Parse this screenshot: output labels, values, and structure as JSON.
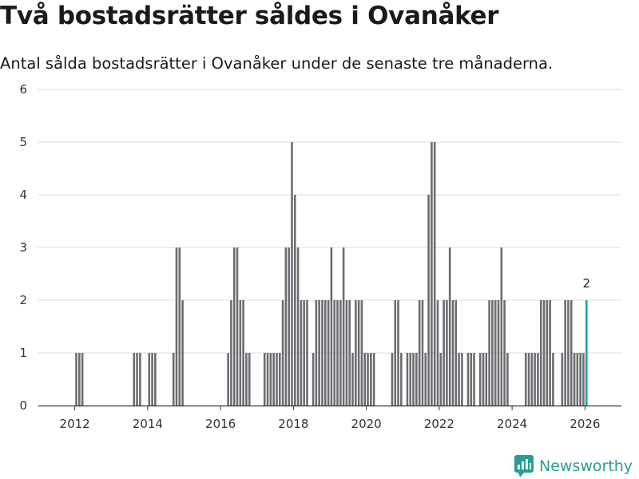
{
  "header": {
    "title": "Två bostadsrätter såldes i Ovanåker",
    "subtitle": "Antal sålda bostadsrätter i Ovanåker under de senaste tre månaderna."
  },
  "brand": {
    "name": "Newsworthy",
    "color": "#2a9d92"
  },
  "colors": {
    "bar": "#6d6d72",
    "highlight": "#1aa39a",
    "grid": "#dddddd",
    "axis": "#333333"
  },
  "chart_data": {
    "type": "bar",
    "title": "Två bostadsrätter såldes i Ovanåker",
    "subtitle": "Antal sålda bostadsrätter i Ovanåker under de senaste tre månaderna.",
    "xlabel": "",
    "ylabel": "",
    "ylim": [
      0,
      6
    ],
    "yticks": [
      "0",
      "1",
      "2",
      "3",
      "4",
      "5",
      "6"
    ],
    "xticks": [
      "2012",
      "2014",
      "2016",
      "2018",
      "2020",
      "2022",
      "2024",
      "2026"
    ],
    "x_start": "2011-01",
    "x_end": "2026-12",
    "grid": true,
    "series": [
      {
        "name": "Antal sålda bostadsrätter",
        "points": [
          {
            "month": "2012-01",
            "value": 1
          },
          {
            "month": "2012-02",
            "value": 1
          },
          {
            "month": "2012-03",
            "value": 1
          },
          {
            "month": "2013-08",
            "value": 1
          },
          {
            "month": "2013-09",
            "value": 1
          },
          {
            "month": "2013-10",
            "value": 1
          },
          {
            "month": "2014-01",
            "value": 1
          },
          {
            "month": "2014-02",
            "value": 1
          },
          {
            "month": "2014-03",
            "value": 1
          },
          {
            "month": "2014-09",
            "value": 1
          },
          {
            "month": "2014-10",
            "value": 3
          },
          {
            "month": "2014-11",
            "value": 3
          },
          {
            "month": "2014-12",
            "value": 2
          },
          {
            "month": "2016-03",
            "value": 1
          },
          {
            "month": "2016-04",
            "value": 2
          },
          {
            "month": "2016-05",
            "value": 3
          },
          {
            "month": "2016-06",
            "value": 3
          },
          {
            "month": "2016-07",
            "value": 2
          },
          {
            "month": "2016-08",
            "value": 2
          },
          {
            "month": "2016-09",
            "value": 1
          },
          {
            "month": "2016-10",
            "value": 1
          },
          {
            "month": "2017-03",
            "value": 1
          },
          {
            "month": "2017-04",
            "value": 1
          },
          {
            "month": "2017-05",
            "value": 1
          },
          {
            "month": "2017-06",
            "value": 1
          },
          {
            "month": "2017-07",
            "value": 1
          },
          {
            "month": "2017-08",
            "value": 1
          },
          {
            "month": "2017-09",
            "value": 2
          },
          {
            "month": "2017-10",
            "value": 3
          },
          {
            "month": "2017-11",
            "value": 3
          },
          {
            "month": "2017-12",
            "value": 5
          },
          {
            "month": "2018-01",
            "value": 4
          },
          {
            "month": "2018-02",
            "value": 3
          },
          {
            "month": "2018-03",
            "value": 2
          },
          {
            "month": "2018-04",
            "value": 2
          },
          {
            "month": "2018-05",
            "value": 2
          },
          {
            "month": "2018-07",
            "value": 1
          },
          {
            "month": "2018-08",
            "value": 2
          },
          {
            "month": "2018-09",
            "value": 2
          },
          {
            "month": "2018-10",
            "value": 2
          },
          {
            "month": "2018-11",
            "value": 2
          },
          {
            "month": "2018-12",
            "value": 2
          },
          {
            "month": "2019-01",
            "value": 3
          },
          {
            "month": "2019-02",
            "value": 2
          },
          {
            "month": "2019-03",
            "value": 2
          },
          {
            "month": "2019-04",
            "value": 2
          },
          {
            "month": "2019-05",
            "value": 3
          },
          {
            "month": "2019-06",
            "value": 2
          },
          {
            "month": "2019-07",
            "value": 2
          },
          {
            "month": "2019-08",
            "value": 1
          },
          {
            "month": "2019-09",
            "value": 2
          },
          {
            "month": "2019-10",
            "value": 2
          },
          {
            "month": "2019-11",
            "value": 2
          },
          {
            "month": "2019-12",
            "value": 1
          },
          {
            "month": "2020-01",
            "value": 1
          },
          {
            "month": "2020-02",
            "value": 1
          },
          {
            "month": "2020-03",
            "value": 1
          },
          {
            "month": "2020-09",
            "value": 1
          },
          {
            "month": "2020-10",
            "value": 2
          },
          {
            "month": "2020-11",
            "value": 2
          },
          {
            "month": "2020-12",
            "value": 1
          },
          {
            "month": "2021-02",
            "value": 1
          },
          {
            "month": "2021-03",
            "value": 1
          },
          {
            "month": "2021-04",
            "value": 1
          },
          {
            "month": "2021-05",
            "value": 1
          },
          {
            "month": "2021-06",
            "value": 2
          },
          {
            "month": "2021-07",
            "value": 2
          },
          {
            "month": "2021-08",
            "value": 1
          },
          {
            "month": "2021-09",
            "value": 4
          },
          {
            "month": "2021-10",
            "value": 5
          },
          {
            "month": "2021-11",
            "value": 5
          },
          {
            "month": "2021-12",
            "value": 2
          },
          {
            "month": "2022-01",
            "value": 1
          },
          {
            "month": "2022-02",
            "value": 2
          },
          {
            "month": "2022-03",
            "value": 2
          },
          {
            "month": "2022-04",
            "value": 3
          },
          {
            "month": "2022-05",
            "value": 2
          },
          {
            "month": "2022-06",
            "value": 2
          },
          {
            "month": "2022-07",
            "value": 1
          },
          {
            "month": "2022-08",
            "value": 1
          },
          {
            "month": "2022-10",
            "value": 1
          },
          {
            "month": "2022-11",
            "value": 1
          },
          {
            "month": "2022-12",
            "value": 1
          },
          {
            "month": "2023-02",
            "value": 1
          },
          {
            "month": "2023-03",
            "value": 1
          },
          {
            "month": "2023-04",
            "value": 1
          },
          {
            "month": "2023-05",
            "value": 2
          },
          {
            "month": "2023-06",
            "value": 2
          },
          {
            "month": "2023-07",
            "value": 2
          },
          {
            "month": "2023-08",
            "value": 2
          },
          {
            "month": "2023-09",
            "value": 3
          },
          {
            "month": "2023-10",
            "value": 2
          },
          {
            "month": "2023-11",
            "value": 1
          },
          {
            "month": "2024-05",
            "value": 1
          },
          {
            "month": "2024-06",
            "value": 1
          },
          {
            "month": "2024-07",
            "value": 1
          },
          {
            "month": "2024-08",
            "value": 1
          },
          {
            "month": "2024-09",
            "value": 1
          },
          {
            "month": "2024-10",
            "value": 2
          },
          {
            "month": "2024-11",
            "value": 2
          },
          {
            "month": "2024-12",
            "value": 2
          },
          {
            "month": "2025-01",
            "value": 2
          },
          {
            "month": "2025-02",
            "value": 1
          },
          {
            "month": "2025-05",
            "value": 1
          },
          {
            "month": "2025-06",
            "value": 2
          },
          {
            "month": "2025-07",
            "value": 2
          },
          {
            "month": "2025-08",
            "value": 2
          },
          {
            "month": "2025-09",
            "value": 1
          },
          {
            "month": "2025-10",
            "value": 1
          },
          {
            "month": "2025-11",
            "value": 1
          },
          {
            "month": "2025-12",
            "value": 1
          },
          {
            "month": "2026-01",
            "value": 2,
            "highlight": true
          }
        ]
      }
    ],
    "annotations": [
      {
        "month": "2026-01",
        "text": "2"
      }
    ]
  }
}
